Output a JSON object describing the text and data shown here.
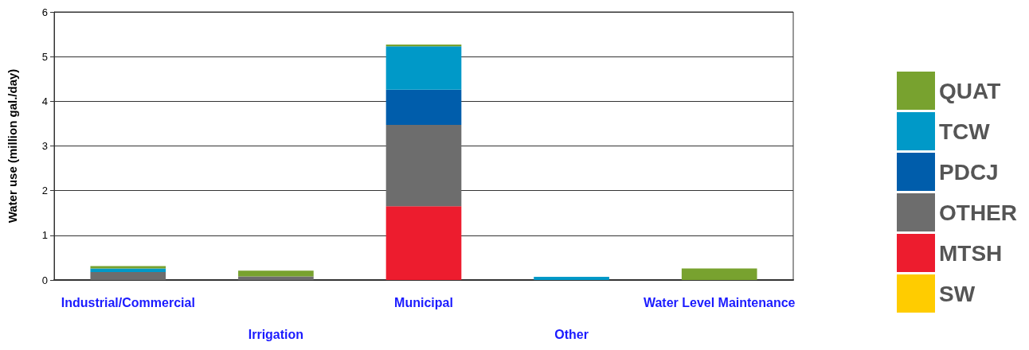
{
  "chart_data": {
    "type": "bar",
    "stacked": true,
    "ylabel": "Water use (million gal./day)",
    "categories": [
      "Industrial/Commercial",
      "Irrigation",
      "Municipal",
      "Other",
      "Water Level Maintenance"
    ],
    "series": [
      {
        "name": "SW",
        "color": "#ffcc00",
        "values": [
          0,
          0,
          0,
          0,
          0
        ]
      },
      {
        "name": "MTSH",
        "color": "#ed1c2e",
        "values": [
          0,
          0,
          1.65,
          0,
          0
        ]
      },
      {
        "name": "OTHER",
        "color": "#6d6d6d",
        "values": [
          0.18,
          0.08,
          1.82,
          0,
          0
        ]
      },
      {
        "name": "PDCJ",
        "color": "#005dab",
        "values": [
          0,
          0,
          0.79,
          0,
          0
        ]
      },
      {
        "name": "TCW",
        "color": "#0099c8",
        "values": [
          0.08,
          0,
          0.97,
          0.07,
          0
        ]
      },
      {
        "name": "QUAT",
        "color": "#78a22f",
        "values": [
          0.05,
          0.13,
          0.04,
          0,
          0.26
        ]
      }
    ],
    "ylim": [
      0,
      6
    ],
    "yticks": [
      0,
      1,
      2,
      3,
      4,
      5,
      6
    ],
    "grid": "y",
    "legend": "right"
  }
}
